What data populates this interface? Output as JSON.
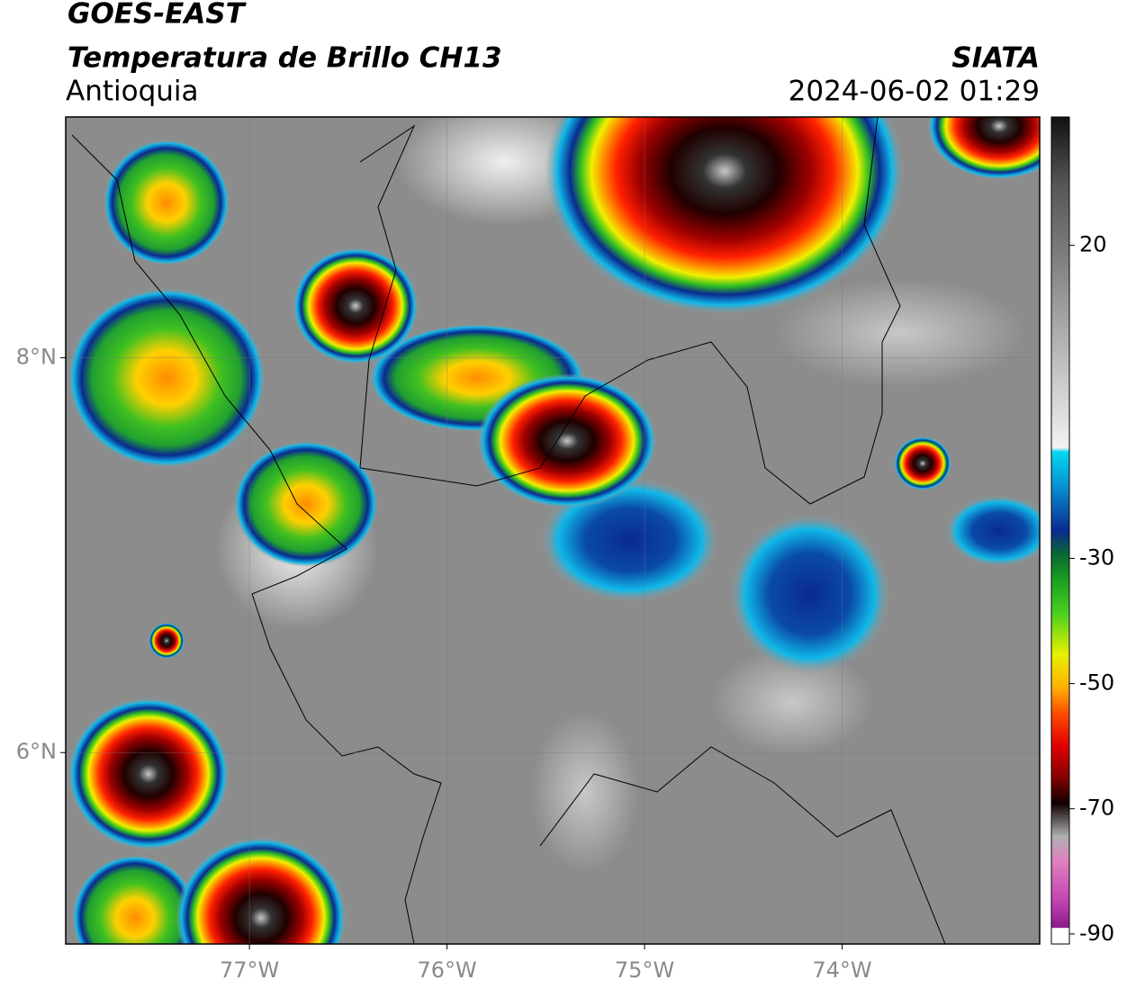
{
  "chart_data": {
    "type": "map",
    "title": "GOES-EAST",
    "subtitle": "Temperatura de Brillo CH13",
    "region": "Antioquia",
    "source": "SIATA",
    "timestamp": "2024-06-02 01:29",
    "xlim": [
      -77.93,
      -73.0
    ],
    "ylim": [
      5.03,
      9.22
    ],
    "xticks": [
      {
        "value": -77,
        "label": "77°W"
      },
      {
        "value": -76,
        "label": "76°W"
      },
      {
        "value": -75,
        "label": "75°W"
      },
      {
        "value": -74,
        "label": "74°W"
      }
    ],
    "yticks": [
      {
        "value": 8,
        "label": "8°N"
      },
      {
        "value": 6,
        "label": "6°N"
      }
    ],
    "grid": true,
    "colorbar": {
      "lim": [
        -91.6,
        40.5
      ],
      "ticks": [
        20,
        -30,
        -50,
        -70,
        -90
      ]
    }
  }
}
